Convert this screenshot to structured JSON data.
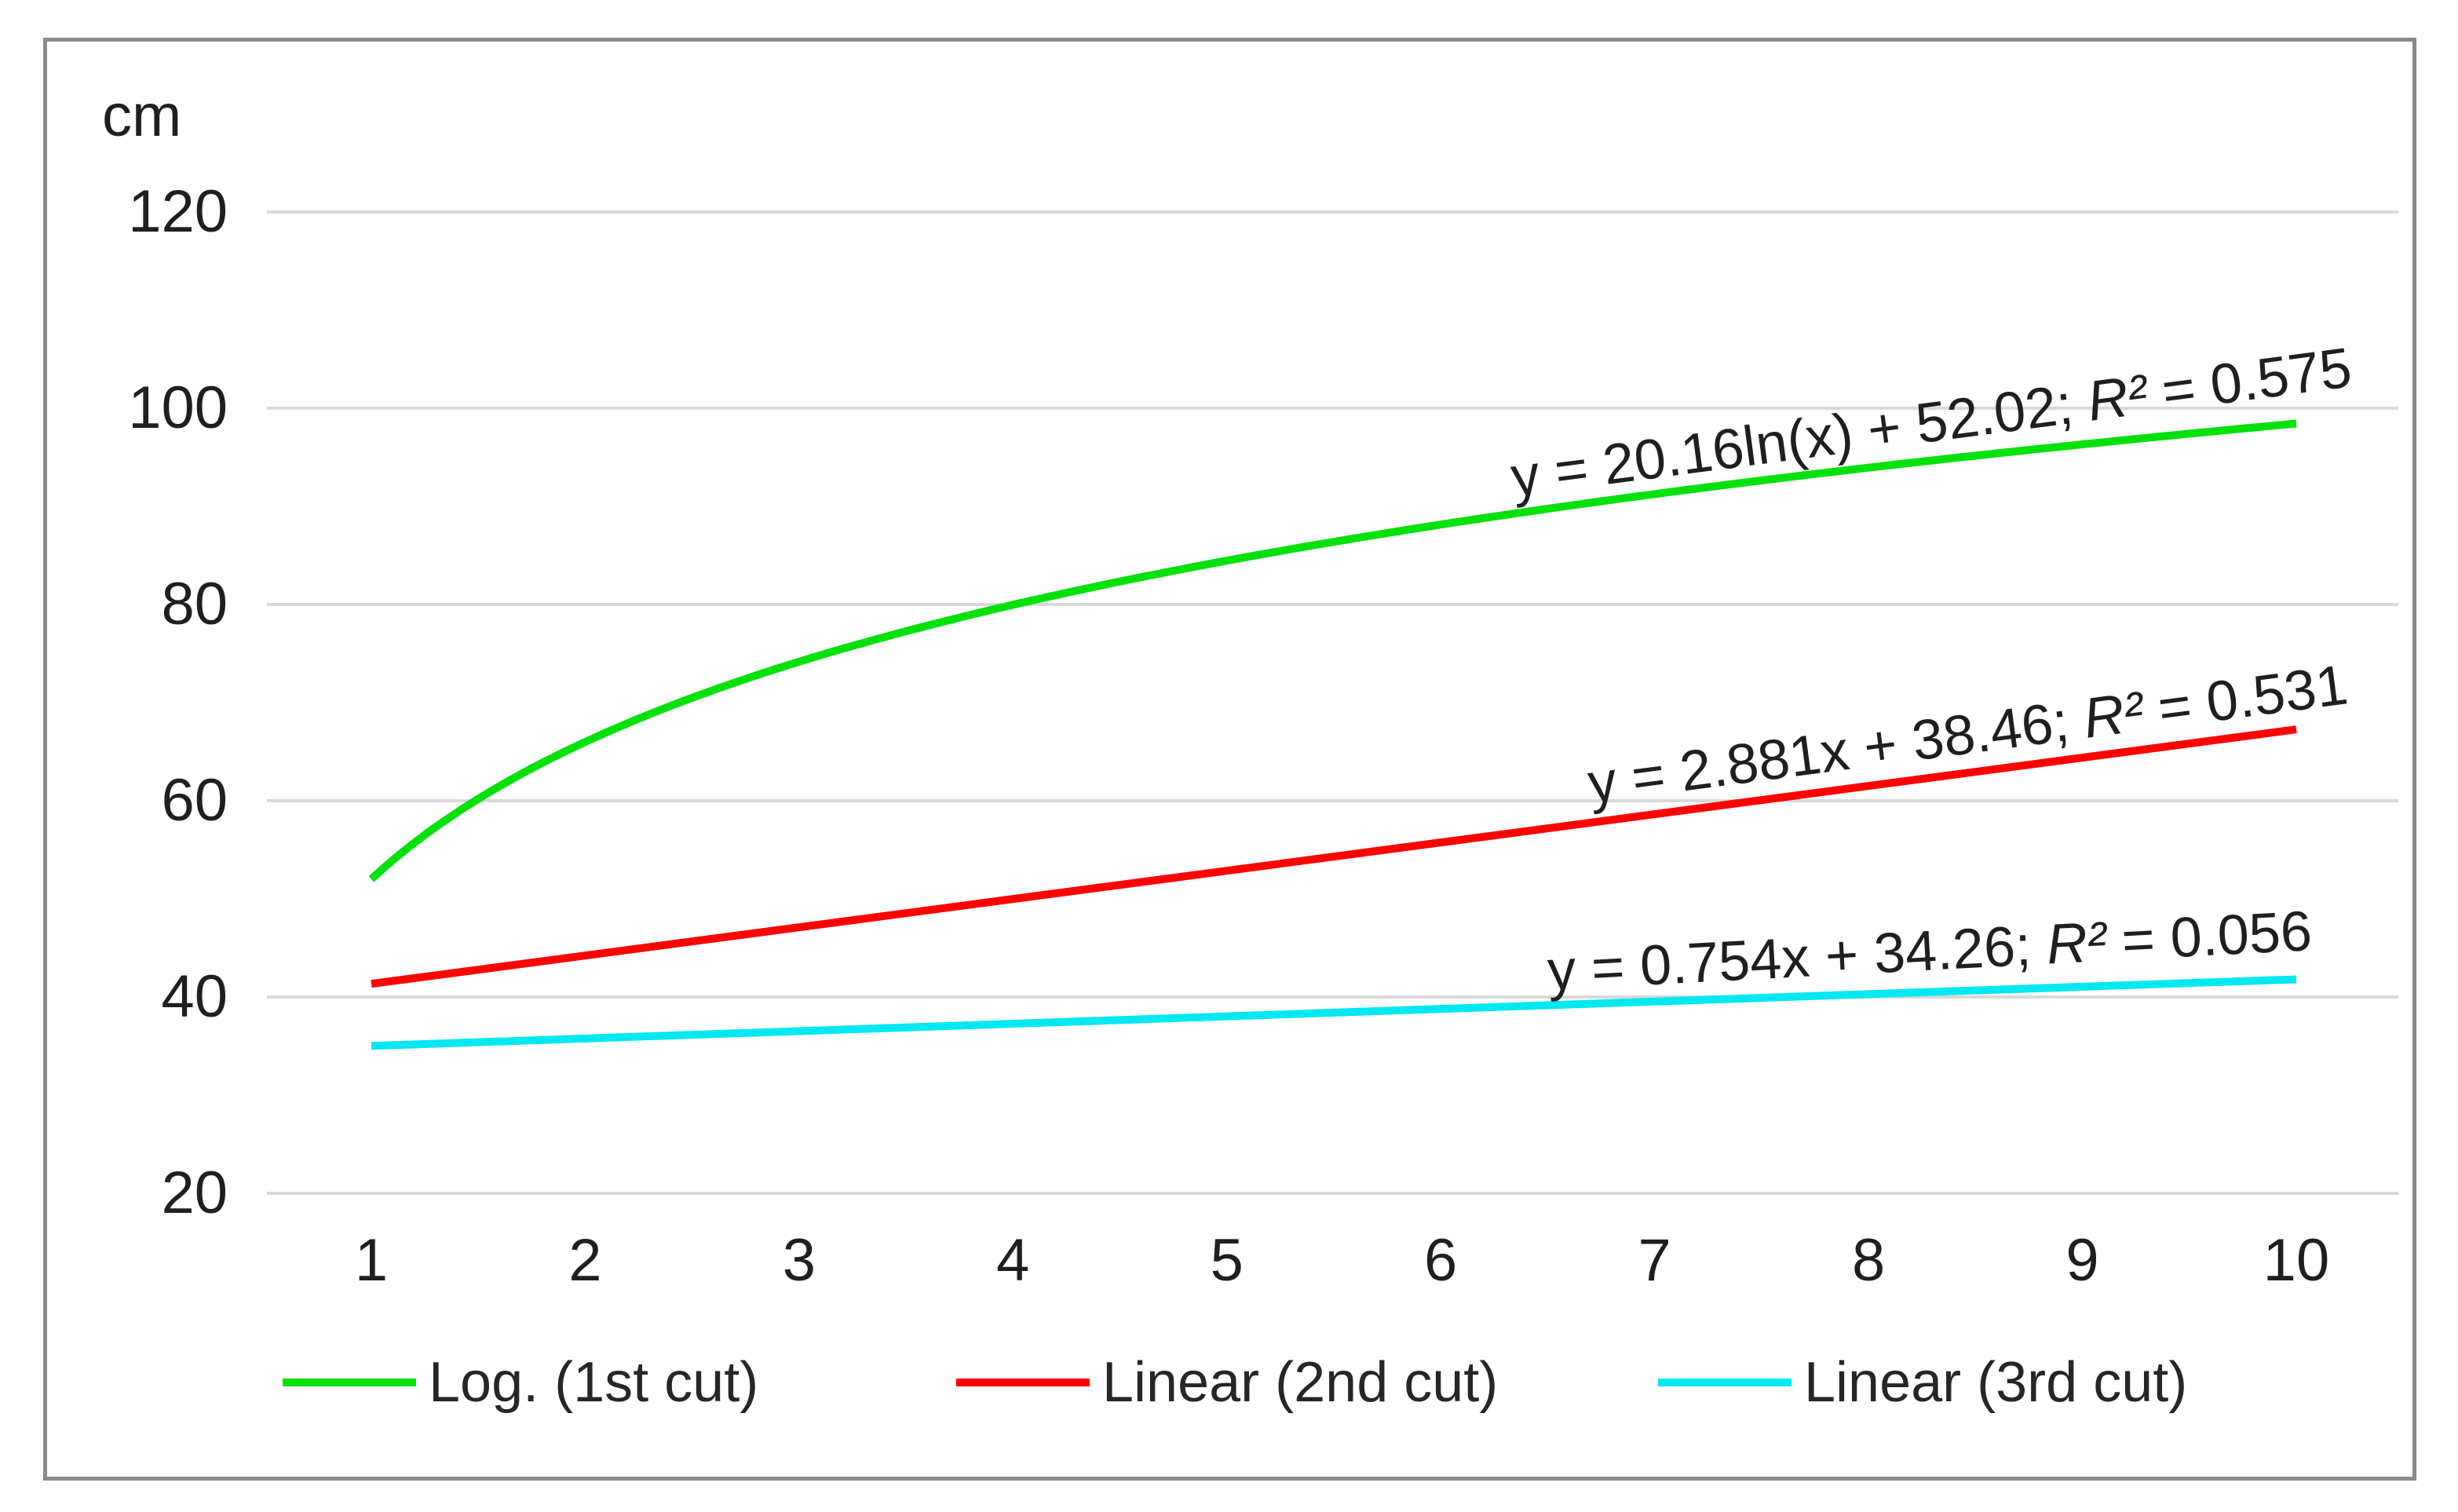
{
  "chart": {
    "unit_label": "cm"
  },
  "legend": {
    "items": [
      {
        "label": "Log. (1st cut)",
        "color": "#00e10a"
      },
      {
        "label": "Linear (2nd cut)",
        "color": "#ff0000"
      },
      {
        "label": "Linear (3rd cut)",
        "color": "#00e8f2"
      }
    ]
  },
  "chart_data": {
    "type": "line",
    "title": "",
    "xlabel": "",
    "ylabel": "cm",
    "x_ticks": [
      1,
      2,
      3,
      4,
      5,
      6,
      7,
      8,
      9,
      10
    ],
    "y_ticks": [
      120,
      100,
      80,
      60,
      40,
      20
    ],
    "xlim": [
      1,
      10
    ],
    "ylim": [
      20,
      120
    ],
    "grid": "horizontal",
    "legend_position": "bottom",
    "series": [
      {
        "name": "Log. (1st cut)",
        "model": "logarithmic",
        "color": "#00e10a",
        "equation": "y = 20.16ln(x) + 52.02",
        "r_squared": 0.575,
        "coefficients": {
          "a": 20.16,
          "b": 52.02
        },
        "x_range": [
          1,
          10
        ],
        "values_at_ticks": [
          52.02,
          65.99,
          74.17,
          79.97,
          84.47,
          88.14,
          91.25,
          93.94,
          96.32,
          98.44
        ],
        "label": {
          "formula": "y = 20.16ln(x) + 52.02; ",
          "r2_symbol": "R²",
          "r2_rest": " = 0.575"
        }
      },
      {
        "name": "Linear (2nd cut)",
        "model": "linear",
        "color": "#ff0000",
        "equation": "y = 2.881x + 38.46",
        "r_squared": 0.531,
        "coefficients": {
          "slope": 2.881,
          "intercept": 38.46
        },
        "x_range": [
          1,
          10
        ],
        "values_at_ticks": [
          41.34,
          44.22,
          47.1,
          49.98,
          52.87,
          55.75,
          58.63,
          61.51,
          64.39,
          67.27
        ],
        "label": {
          "formula": "y = 2.881x + 38.46; ",
          "r2_symbol": "R²",
          "r2_rest": " = 0.531"
        }
      },
      {
        "name": "Linear (3rd cut)",
        "model": "linear",
        "color": "#00e8f2",
        "equation": "y = 0.754x + 34.26",
        "r_squared": 0.056,
        "coefficients": {
          "slope": 0.754,
          "intercept": 34.26
        },
        "x_range": [
          1,
          10
        ],
        "values_at_ticks": [
          35.01,
          35.77,
          36.52,
          37.28,
          38.03,
          38.79,
          39.54,
          40.3,
          41.05,
          41.8
        ],
        "label": {
          "formula": "y = 0.754x + 34.26; ",
          "r2_symbol": "R²",
          "r2_rest": " = 0.056"
        }
      }
    ]
  }
}
